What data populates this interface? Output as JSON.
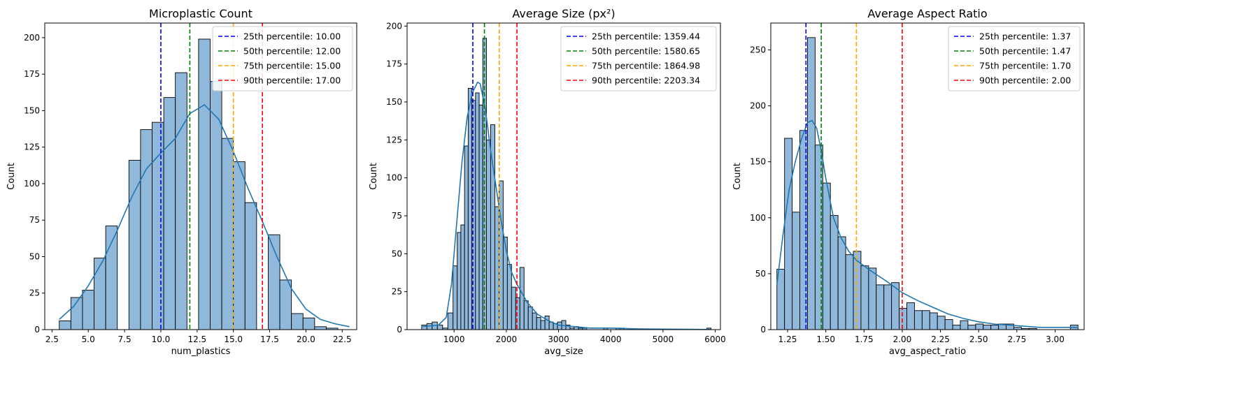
{
  "chart_data": [
    {
      "type": "histogram",
      "title": "Microplastic Count",
      "xlabel": "num_plastics",
      "ylabel": "Count",
      "xlim": [
        2.0,
        23.5
      ],
      "ylim": [
        0,
        210
      ],
      "xticks": [
        2.5,
        5.0,
        7.5,
        10.0,
        12.5,
        15.0,
        17.5,
        20.0,
        22.5
      ],
      "xtick_labels": [
        "2.5",
        "5.0",
        "7.5",
        "10.0",
        "12.5",
        "15.0",
        "17.5",
        "20.0",
        "22.5"
      ],
      "yticks": [
        0,
        25,
        50,
        75,
        100,
        125,
        150,
        175,
        200
      ],
      "ytick_labels": [
        "0",
        "25",
        "50",
        "75",
        "100",
        "125",
        "150",
        "175",
        "200"
      ],
      "bins": [
        {
          "x0": 3.0,
          "x1": 3.8,
          "count": 6
        },
        {
          "x0": 3.8,
          "x1": 4.6,
          "count": 22
        },
        {
          "x0": 4.6,
          "x1": 5.4,
          "count": 27
        },
        {
          "x0": 5.4,
          "x1": 6.2,
          "count": 49
        },
        {
          "x0": 6.2,
          "x1": 7.0,
          "count": 71
        },
        {
          "x0": 7.0,
          "x1": 7.8,
          "count": 0
        },
        {
          "x0": 7.8,
          "x1": 8.6,
          "count": 116
        },
        {
          "x0": 8.6,
          "x1": 9.4,
          "count": 137
        },
        {
          "x0": 9.4,
          "x1": 10.2,
          "count": 142
        },
        {
          "x0": 10.2,
          "x1": 11.0,
          "count": 159
        },
        {
          "x0": 11.0,
          "x1": 11.8,
          "count": 176
        },
        {
          "x0": 11.8,
          "x1": 12.6,
          "count": 0
        },
        {
          "x0": 12.6,
          "x1": 13.4,
          "count": 199
        },
        {
          "x0": 13.4,
          "x1": 14.2,
          "count": 170
        },
        {
          "x0": 14.2,
          "x1": 15.0,
          "count": 131
        },
        {
          "x0": 15.0,
          "x1": 15.8,
          "count": 115
        },
        {
          "x0": 15.8,
          "x1": 16.6,
          "count": 87
        },
        {
          "x0": 16.6,
          "x1": 17.4,
          "count": 0
        },
        {
          "x0": 17.4,
          "x1": 18.2,
          "count": 65
        },
        {
          "x0": 18.2,
          "x1": 19.0,
          "count": 34
        },
        {
          "x0": 19.0,
          "x1": 19.8,
          "count": 11
        },
        {
          "x0": 19.8,
          "x1": 20.6,
          "count": 8
        },
        {
          "x0": 20.6,
          "x1": 21.4,
          "count": 2
        },
        {
          "x0": 21.4,
          "x1": 22.2,
          "count": 1
        }
      ],
      "kde": {
        "x": [
          3.0,
          4.0,
          5.0,
          6.0,
          7.0,
          8.0,
          9.0,
          10.0,
          11.0,
          12.0,
          13.0,
          14.0,
          15.0,
          16.0,
          17.0,
          18.0,
          19.0,
          20.0,
          21.0,
          22.0,
          23.0
        ],
        "y": [
          7,
          16,
          30,
          47,
          68,
          91,
          110,
          121,
          131,
          148,
          154,
          144,
          122,
          97,
          74,
          50,
          28,
          14,
          7,
          4,
          2
        ]
      },
      "percentiles": [
        {
          "label": "25th percentile: 10.00",
          "value": 10.0,
          "color": "#0000ff"
        },
        {
          "label": "50th percentile: 12.00",
          "value": 12.0,
          "color": "#008000"
        },
        {
          "label": "75th percentile: 15.00",
          "value": 15.0,
          "color": "#ffa500"
        },
        {
          "label": "90th percentile: 17.00",
          "value": 17.0,
          "color": "#ff0000"
        }
      ],
      "legend_position": "top-right"
    },
    {
      "type": "histogram",
      "title": "Average Size (px²)",
      "xlabel": "avg_size",
      "ylabel": "Count",
      "xlim": [
        100,
        6100
      ],
      "ylim": [
        0,
        202
      ],
      "xticks": [
        1000,
        2000,
        3000,
        4000,
        5000,
        6000
      ],
      "xtick_labels": [
        "1000",
        "2000",
        "3000",
        "4000",
        "5000",
        "6000"
      ],
      "yticks": [
        0,
        25,
        50,
        75,
        100,
        125,
        150,
        175,
        200
      ],
      "ytick_labels": [
        "0",
        "25",
        "50",
        "75",
        "100",
        "125",
        "150",
        "175",
        "200"
      ],
      "bins": [
        {
          "x0": 380,
          "x1": 480,
          "count": 3
        },
        {
          "x0": 480,
          "x1": 580,
          "count": 4
        },
        {
          "x0": 580,
          "x1": 680,
          "count": 5
        },
        {
          "x0": 680,
          "x1": 780,
          "count": 3
        },
        {
          "x0": 780,
          "x1": 880,
          "count": 1
        },
        {
          "x0": 880,
          "x1": 980,
          "count": 11
        },
        {
          "x0": 980,
          "x1": 1060,
          "count": 42
        },
        {
          "x0": 1060,
          "x1": 1130,
          "count": 64
        },
        {
          "x0": 1130,
          "x1": 1200,
          "count": 69
        },
        {
          "x0": 1200,
          "x1": 1270,
          "count": 121
        },
        {
          "x0": 1270,
          "x1": 1340,
          "count": 159
        },
        {
          "x0": 1340,
          "x1": 1410,
          "count": 151
        },
        {
          "x0": 1410,
          "x1": 1480,
          "count": 156
        },
        {
          "x0": 1480,
          "x1": 1550,
          "count": 148
        },
        {
          "x0": 1550,
          "x1": 1620,
          "count": 192
        },
        {
          "x0": 1620,
          "x1": 1700,
          "count": 125
        },
        {
          "x0": 1700,
          "x1": 1780,
          "count": 135
        },
        {
          "x0": 1780,
          "x1": 1860,
          "count": 81
        },
        {
          "x0": 1860,
          "x1": 1940,
          "count": 98
        },
        {
          "x0": 1940,
          "x1": 2020,
          "count": 61
        },
        {
          "x0": 2020,
          "x1": 2100,
          "count": 43
        },
        {
          "x0": 2100,
          "x1": 2180,
          "count": 28
        },
        {
          "x0": 2180,
          "x1": 2260,
          "count": 21
        },
        {
          "x0": 2260,
          "x1": 2340,
          "count": 41
        },
        {
          "x0": 2340,
          "x1": 2420,
          "count": 19
        },
        {
          "x0": 2420,
          "x1": 2500,
          "count": 15
        },
        {
          "x0": 2500,
          "x1": 2580,
          "count": 11
        },
        {
          "x0": 2580,
          "x1": 2660,
          "count": 8
        },
        {
          "x0": 2660,
          "x1": 2740,
          "count": 6
        },
        {
          "x0": 2740,
          "x1": 2820,
          "count": 9
        },
        {
          "x0": 2820,
          "x1": 2900,
          "count": 5
        },
        {
          "x0": 2900,
          "x1": 2980,
          "count": 4
        },
        {
          "x0": 2980,
          "x1": 3060,
          "count": 5
        },
        {
          "x0": 3060,
          "x1": 3140,
          "count": 6
        },
        {
          "x0": 3140,
          "x1": 3220,
          "count": 3
        },
        {
          "x0": 3220,
          "x1": 3300,
          "count": 1
        },
        {
          "x0": 3300,
          "x1": 3380,
          "count": 2
        },
        {
          "x0": 3380,
          "x1": 3460,
          "count": 1
        },
        {
          "x0": 3460,
          "x1": 3540,
          "count": 1
        },
        {
          "x0": 3860,
          "x1": 3940,
          "count": 1
        },
        {
          "x0": 4100,
          "x1": 4180,
          "count": 1
        },
        {
          "x0": 4180,
          "x1": 4260,
          "count": 1
        },
        {
          "x0": 5840,
          "x1": 5920,
          "count": 1
        }
      ],
      "kde": {
        "x": [
          400,
          700,
          850,
          950,
          1050,
          1150,
          1250,
          1350,
          1450,
          1500,
          1600,
          1700,
          1800,
          1900,
          2000,
          2100,
          2200,
          2300,
          2400,
          2600,
          2800,
          3000,
          3300,
          3600,
          4000,
          4500,
          5000,
          5500,
          5900
        ],
        "y": [
          2,
          3,
          8,
          30,
          70,
          110,
          140,
          156,
          163,
          162,
          145,
          118,
          95,
          72,
          52,
          38,
          30,
          24,
          18,
          10,
          6,
          3,
          2,
          1,
          1,
          0.5,
          0.3,
          0.2,
          0.1
        ]
      },
      "percentiles": [
        {
          "label": "25th percentile: 1359.44",
          "value": 1359.44,
          "color": "#0000ff"
        },
        {
          "label": "50th percentile: 1580.65",
          "value": 1580.65,
          "color": "#008000"
        },
        {
          "label": "75th percentile: 1864.98",
          "value": 1864.98,
          "color": "#ffa500"
        },
        {
          "label": "90th percentile: 2203.34",
          "value": 2203.34,
          "color": "#ff0000"
        }
      ],
      "legend_position": "top-right"
    },
    {
      "type": "histogram",
      "title": "Average Aspect Ratio",
      "xlabel": "avg_aspect_ratio",
      "ylabel": "Count",
      "xlim": [
        1.14,
        3.19
      ],
      "ylim": [
        0,
        274
      ],
      "xticks": [
        1.25,
        1.5,
        1.75,
        2.0,
        2.25,
        2.5,
        2.75,
        3.0
      ],
      "xtick_labels": [
        "1.25",
        "1.50",
        "1.75",
        "2.00",
        "2.25",
        "2.50",
        "2.75",
        "3.00"
      ],
      "yticks": [
        0,
        50,
        100,
        150,
        200,
        250
      ],
      "ytick_labels": [
        "0",
        "50",
        "100",
        "150",
        "200",
        "250"
      ],
      "bins": [
        {
          "x0": 1.18,
          "x1": 1.23,
          "count": 54
        },
        {
          "x0": 1.23,
          "x1": 1.28,
          "count": 171
        },
        {
          "x0": 1.28,
          "x1": 1.33,
          "count": 105
        },
        {
          "x0": 1.33,
          "x1": 1.38,
          "count": 178
        },
        {
          "x0": 1.38,
          "x1": 1.43,
          "count": 261
        },
        {
          "x0": 1.43,
          "x1": 1.48,
          "count": 165
        },
        {
          "x0": 1.48,
          "x1": 1.53,
          "count": 131
        },
        {
          "x0": 1.53,
          "x1": 1.58,
          "count": 102
        },
        {
          "x0": 1.58,
          "x1": 1.63,
          "count": 83
        },
        {
          "x0": 1.63,
          "x1": 1.68,
          "count": 67
        },
        {
          "x0": 1.68,
          "x1": 1.73,
          "count": 70
        },
        {
          "x0": 1.73,
          "x1": 1.78,
          "count": 57
        },
        {
          "x0": 1.78,
          "x1": 1.83,
          "count": 55
        },
        {
          "x0": 1.83,
          "x1": 1.88,
          "count": 40
        },
        {
          "x0": 1.88,
          "x1": 1.93,
          "count": 40
        },
        {
          "x0": 1.93,
          "x1": 1.98,
          "count": 42
        },
        {
          "x0": 1.98,
          "x1": 2.03,
          "count": 19
        },
        {
          "x0": 2.03,
          "x1": 2.08,
          "count": 24
        },
        {
          "x0": 2.08,
          "x1": 2.13,
          "count": 17
        },
        {
          "x0": 2.13,
          "x1": 2.18,
          "count": 17
        },
        {
          "x0": 2.18,
          "x1": 2.23,
          "count": 15
        },
        {
          "x0": 2.23,
          "x1": 2.28,
          "count": 12
        },
        {
          "x0": 2.28,
          "x1": 2.33,
          "count": 9
        },
        {
          "x0": 2.33,
          "x1": 2.38,
          "count": 4
        },
        {
          "x0": 2.38,
          "x1": 2.43,
          "count": 8
        },
        {
          "x0": 2.43,
          "x1": 2.48,
          "count": 4
        },
        {
          "x0": 2.48,
          "x1": 2.53,
          "count": 5
        },
        {
          "x0": 2.53,
          "x1": 2.58,
          "count": 4
        },
        {
          "x0": 2.58,
          "x1": 2.63,
          "count": 4
        },
        {
          "x0": 2.63,
          "x1": 2.68,
          "count": 5
        },
        {
          "x0": 2.68,
          "x1": 2.73,
          "count": 5
        },
        {
          "x0": 2.73,
          "x1": 2.78,
          "count": 2
        },
        {
          "x0": 2.78,
          "x1": 2.83,
          "count": 1
        },
        {
          "x0": 2.83,
          "x1": 2.88,
          "count": 1
        },
        {
          "x0": 3.1,
          "x1": 3.15,
          "count": 4
        }
      ],
      "kde": {
        "x": [
          1.18,
          1.22,
          1.26,
          1.3,
          1.34,
          1.38,
          1.41,
          1.44,
          1.47,
          1.5,
          1.55,
          1.6,
          1.65,
          1.7,
          1.75,
          1.8,
          1.9,
          2.0,
          2.1,
          2.2,
          2.3,
          2.4,
          2.5,
          2.6,
          2.7,
          2.8,
          2.9,
          3.0,
          3.1,
          3.15
        ],
        "y": [
          40,
          85,
          125,
          150,
          170,
          185,
          187,
          180,
          160,
          135,
          100,
          82,
          70,
          62,
          57,
          52,
          43,
          33,
          26,
          20,
          14,
          10,
          7,
          5,
          4,
          3,
          2,
          2,
          2,
          2
        ]
      },
      "percentiles": [
        {
          "label": "25th percentile: 1.37",
          "value": 1.37,
          "color": "#0000ff"
        },
        {
          "label": "50th percentile: 1.47",
          "value": 1.47,
          "color": "#008000"
        },
        {
          "label": "75th percentile: 1.70",
          "value": 1.7,
          "color": "#ffa500"
        },
        {
          "label": "90th percentile: 2.00",
          "value": 2.0,
          "color": "#ff0000"
        }
      ],
      "legend_position": "top-right"
    }
  ],
  "style": {
    "bar_fill": "#8fb8da",
    "bar_edge": "#000000",
    "kde_color": "#1f77b4"
  }
}
